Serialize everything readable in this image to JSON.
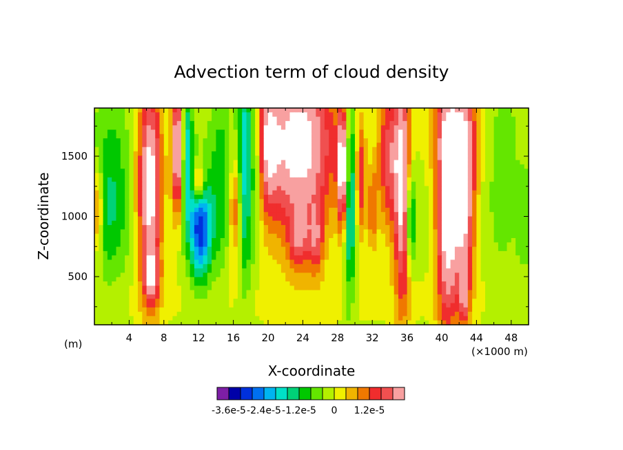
{
  "chart_data": {
    "type": "heatmap",
    "title": "Advection term of cloud density",
    "xlabel": "X-coordinate",
    "ylabel": "Z-coordinate",
    "x_unit_left": "(m)",
    "x_unit_right": "(×1000 m)",
    "xlim": [
      0,
      50
    ],
    "ylim": [
      100,
      1900
    ],
    "xticks": [
      4,
      8,
      12,
      16,
      20,
      24,
      28,
      32,
      36,
      40,
      44,
      48
    ],
    "xtick_labels": [
      "4",
      "8",
      "12",
      "16",
      "20",
      "24",
      "28",
      "32",
      "36",
      "40",
      "44",
      "48"
    ],
    "yticks": [
      500,
      1000,
      1500
    ],
    "ytick_labels": [
      "500",
      "1000",
      "1500"
    ],
    "colorbar": {
      "colors": [
        "#7d1ea6",
        "#0000a8",
        "#0030dc",
        "#0070f0",
        "#00b4f0",
        "#00e0c8",
        "#00d278",
        "#00c800",
        "#64e600",
        "#b4f000",
        "#f0f000",
        "#f0b400",
        "#f07800",
        "#f02d2d",
        "#f05050",
        "#f8a0a0"
      ],
      "labels": [
        "-3.6e-5",
        "-2.4e-5",
        "-1.2e-5",
        "0",
        "1.2e-5"
      ]
    },
    "features": [
      {
        "x": 2.0,
        "z": 1300,
        "sx": 1.4,
        "sz": 500,
        "v": -1.3
      },
      {
        "x": 1.5,
        "z": 900,
        "sx": 1.6,
        "sz": 350,
        "v": -0.6
      },
      {
        "x": 0.4,
        "z": 1050,
        "sx": 0.4,
        "sz": 250,
        "v": 2.5
      },
      {
        "x": 6.4,
        "z": 1250,
        "sx": 1.0,
        "sz": 650,
        "v": 4.8
      },
      {
        "x": 6.6,
        "z": 500,
        "sx": 0.6,
        "sz": 140,
        "v": 2.4
      },
      {
        "x": 9.6,
        "z": 1550,
        "sx": 0.5,
        "sz": 380,
        "v": 5.0
      },
      {
        "x": 10.6,
        "z": 1500,
        "sx": 0.5,
        "sz": 380,
        "v": -3.0
      },
      {
        "x": 12.0,
        "z": 1280,
        "sx": 0.5,
        "sz": 120,
        "v": 3.0
      },
      {
        "x": 12.2,
        "z": 900,
        "sx": 0.9,
        "sz": 300,
        "v": -4.6
      },
      {
        "x": 14.6,
        "z": 1300,
        "sx": 0.9,
        "sz": 500,
        "v": -1.5
      },
      {
        "x": 16.2,
        "z": 1050,
        "sx": 0.5,
        "sz": 300,
        "v": 2.3
      },
      {
        "x": 17.3,
        "z": 1500,
        "sx": 0.6,
        "sz": 700,
        "v": -3.2
      },
      {
        "x": 18.6,
        "z": 1500,
        "sx": 0.5,
        "sz": 500,
        "v": -1.8
      },
      {
        "x": 20.0,
        "z": 1600,
        "sx": 0.8,
        "sz": 400,
        "v": 2.2
      },
      {
        "x": 23.5,
        "z": 1600,
        "sx": 3.2,
        "sz": 550,
        "v": 4.8
      },
      {
        "x": 23.5,
        "z": 800,
        "sx": 0.8,
        "sz": 180,
        "v": 2.2
      },
      {
        "x": 25.5,
        "z": 800,
        "sx": 0.6,
        "sz": 200,
        "v": 2.2
      },
      {
        "x": 28.6,
        "z": 1400,
        "sx": 0.4,
        "sz": 350,
        "v": 5.0
      },
      {
        "x": 29.4,
        "z": 1200,
        "sx": 0.5,
        "sz": 600,
        "v": -3.2
      },
      {
        "x": 30.7,
        "z": 1300,
        "sx": 0.4,
        "sz": 350,
        "v": 2.5
      },
      {
        "x": 32.0,
        "z": 1050,
        "sx": 0.4,
        "sz": 250,
        "v": 2.0
      },
      {
        "x": 33.8,
        "z": 1500,
        "sx": 0.9,
        "sz": 450,
        "v": 3.0
      },
      {
        "x": 35.5,
        "z": 1250,
        "sx": 0.7,
        "sz": 700,
        "v": 4.6
      },
      {
        "x": 36.4,
        "z": 1000,
        "sx": 0.4,
        "sz": 300,
        "v": -3.2
      },
      {
        "x": 40.6,
        "z": 1000,
        "sx": 0.9,
        "sz": 650,
        "v": 4.8
      },
      {
        "x": 42.6,
        "z": 1150,
        "sx": 0.9,
        "sz": 550,
        "v": 4.4
      },
      {
        "x": 42.6,
        "z": 350,
        "sx": 0.4,
        "sz": 200,
        "v": 2.2
      },
      {
        "x": 41.5,
        "z": 1750,
        "sx": 2.0,
        "sz": 300,
        "v": 2.4
      },
      {
        "x": 47.0,
        "z": 1400,
        "sx": 1.2,
        "sz": 600,
        "v": -0.7
      },
      {
        "x": 49.5,
        "z": 950,
        "sx": 0.6,
        "sz": 300,
        "v": -0.8
      },
      {
        "x": 25.0,
        "z": 300,
        "sx": 25.0,
        "sz": 220,
        "v": 0.4
      }
    ]
  }
}
